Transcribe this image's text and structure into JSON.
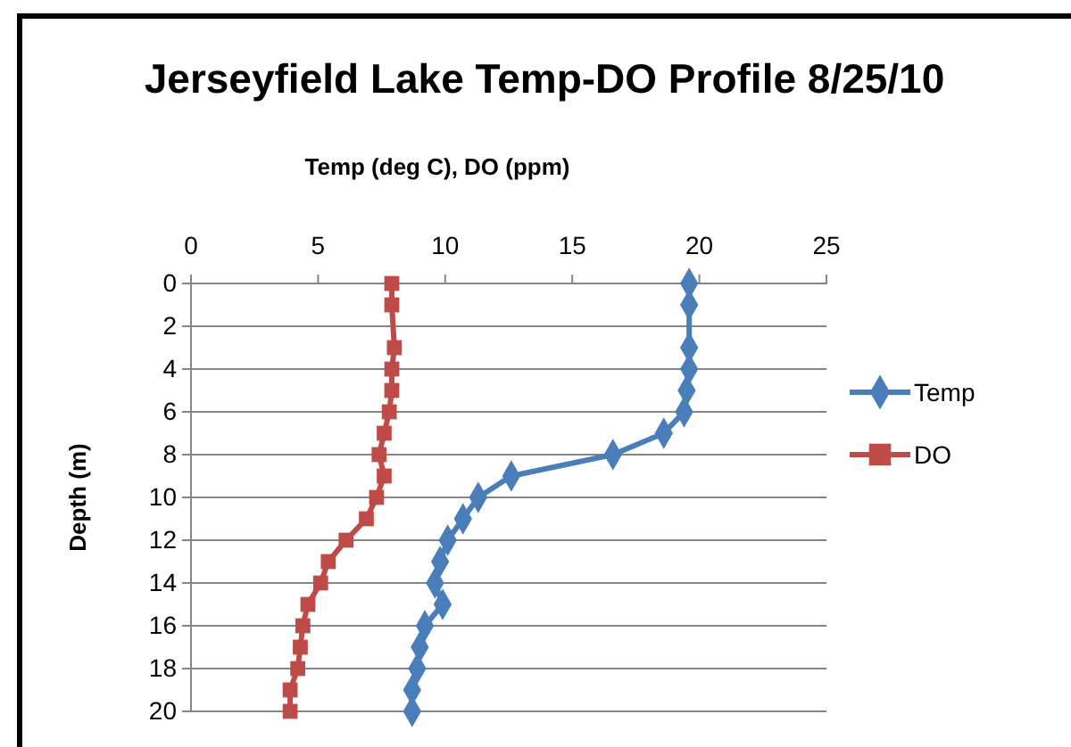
{
  "chart_data": {
    "type": "line",
    "title": "Jerseyfield Lake Temp-DO Profile 8/25/10",
    "xlabel": "Temp (deg C), DO  (ppm)",
    "ylabel": "Depth (m)",
    "xlim": [
      0,
      25
    ],
    "xticks": [
      0,
      5,
      10,
      15,
      20,
      25
    ],
    "ylim": [
      20,
      0
    ],
    "yticks": [
      0,
      2,
      4,
      6,
      8,
      10,
      12,
      14,
      16,
      18,
      20
    ],
    "grid": "y",
    "legend": "right",
    "series": [
      {
        "name": "Temp",
        "color": "#4a7ebb",
        "marker": "diamond",
        "x": [
          19.6,
          19.6,
          19.6,
          19.6,
          19.5,
          19.4,
          18.6,
          16.6,
          12.6,
          11.3,
          10.7,
          10.1,
          9.8,
          9.6,
          9.9,
          9.2,
          9.0,
          8.9,
          8.7,
          8.7
        ],
        "values": [
          0,
          1,
          3,
          4,
          5,
          6,
          7,
          8,
          9,
          10,
          11,
          12,
          13,
          14,
          15,
          16,
          17,
          18,
          19,
          20
        ]
      },
      {
        "name": "DO",
        "color": "#be4b48",
        "marker": "square",
        "x": [
          7.9,
          7.9,
          8.0,
          7.9,
          7.9,
          7.8,
          7.6,
          7.4,
          7.6,
          7.3,
          6.9,
          6.1,
          5.4,
          5.1,
          4.6,
          4.4,
          4.3,
          4.2,
          3.9,
          3.9
        ],
        "values": [
          0,
          1,
          3,
          4,
          5,
          6,
          7,
          8,
          9,
          10,
          11,
          12,
          13,
          14,
          15,
          16,
          17,
          18,
          19,
          20
        ]
      }
    ]
  }
}
